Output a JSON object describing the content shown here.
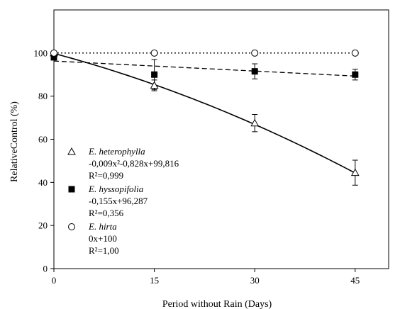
{
  "chart_data": {
    "type": "scatter",
    "xlabel": "Period without Rain (Days)",
    "ylabel": "RelativeControl (%)",
    "xlim": [
      0,
      50
    ],
    "ylim": [
      0,
      120
    ],
    "x_ticks": [
      0,
      15,
      30,
      45
    ],
    "y_ticks": [
      0,
      20,
      40,
      60,
      80,
      100
    ],
    "grid": false,
    "legend_position": "lower-left",
    "series": [
      {
        "name": "E. heterophylla",
        "marker": "open-triangle",
        "line_style": "solid",
        "x": [
          0,
          15,
          30,
          45
        ],
        "y": [
          100,
          85,
          67.5,
          44.5
        ],
        "error": [
          0,
          2.5,
          4,
          5.8
        ],
        "equation": "-0,009x²-0,828x+99,816",
        "r2": "R²=0,999",
        "fit": {
          "kind": "quadratic",
          "a": -0.009,
          "b": -0.828,
          "c": 99.816
        }
      },
      {
        "name": "E. hyssopifolia",
        "marker": "filled-square",
        "line_style": "dashed",
        "x": [
          0,
          15,
          30,
          45
        ],
        "y": [
          98,
          90,
          91.5,
          90
        ],
        "error": [
          0,
          7,
          3.5,
          2.5
        ],
        "equation": "-0,155x+96,287",
        "r2": "R²=0,356",
        "fit": {
          "kind": "linear",
          "a": 0,
          "b": -0.155,
          "c": 96.287
        }
      },
      {
        "name": "E. hirta",
        "marker": "open-circle",
        "line_style": "dotted",
        "x": [
          0,
          15,
          30,
          45
        ],
        "y": [
          100,
          100,
          100,
          100
        ],
        "error": [
          0,
          0,
          0,
          0
        ],
        "equation": "0x+100",
        "r2": "R²=1,00",
        "fit": {
          "kind": "linear",
          "a": 0,
          "b": 0,
          "c": 100
        }
      }
    ]
  }
}
